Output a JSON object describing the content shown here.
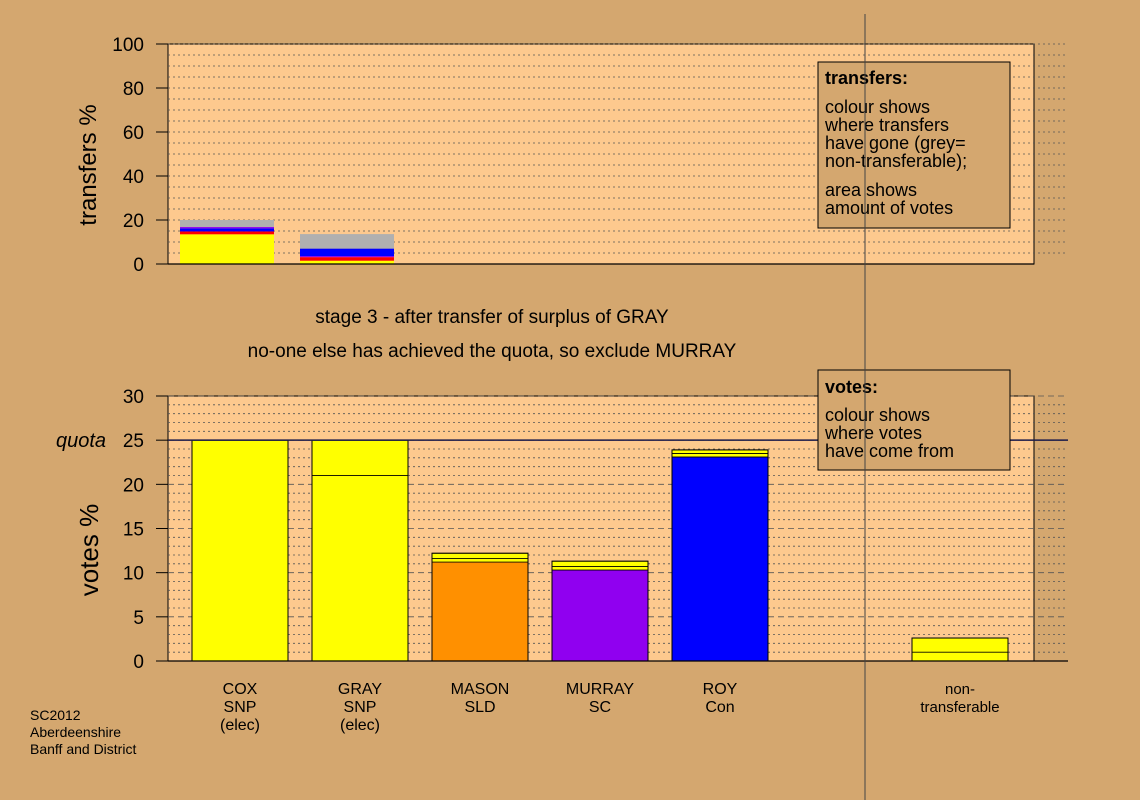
{
  "colors": {
    "background": "#d4a76f",
    "plot_bg": "#fdc98e",
    "snp": "#ffff00",
    "sld": "#ff9000",
    "sc": "#9000f0",
    "con": "#0000ff",
    "red": "#ff0000",
    "nontransferable": "#b0b0b0",
    "box_bg": "#d4a76f",
    "axis": "#000000",
    "quota_line": "#1a1a4a",
    "divider": "#444444"
  },
  "stage_text": {
    "line1": "stage 3 - after transfer of surplus of GRAY",
    "line2": "no-one else has achieved the quota, so exclude MURRAY"
  },
  "transfers_box": {
    "title": "transfers:",
    "lines1": [
      "colour shows",
      "where transfers",
      "have gone (grey=",
      "non-transferable);"
    ],
    "lines2": [
      "area shows",
      "amount of votes"
    ]
  },
  "votes_box": {
    "title": "votes:",
    "lines": [
      "colour shows",
      "where votes",
      "have come from"
    ]
  },
  "footer": [
    "SC2012",
    "Aberdeenshire",
    "Banff and District"
  ],
  "chart_data": [
    {
      "type": "bar",
      "stacked": true,
      "ylabel": "transfers %",
      "ylim": [
        0,
        100
      ],
      "yticks": [
        0,
        20,
        40,
        60,
        80,
        100
      ],
      "grid": true,
      "bars": [
        {
          "slot": 0,
          "segments": [
            {
              "value": 13.5,
              "color": "snp"
            },
            {
              "value": 1.3,
              "color": "red"
            },
            {
              "value": 1.4,
              "color": "con"
            },
            {
              "value": 0.6,
              "color": "sc"
            },
            {
              "value": 3.2,
              "color": "nontransferable"
            }
          ]
        },
        {
          "slot": 1,
          "segments": [
            {
              "value": 1.5,
              "color": "snp"
            },
            {
              "value": 1.6,
              "color": "red"
            },
            {
              "value": 0.5,
              "color": "sc"
            },
            {
              "value": 3.4,
              "color": "con"
            },
            {
              "value": 6.6,
              "color": "nontransferable"
            }
          ]
        }
      ]
    },
    {
      "type": "bar",
      "stacked": true,
      "ylabel": "votes %",
      "ylim": [
        0,
        30
      ],
      "yticks": [
        0,
        5,
        10,
        15,
        20,
        25,
        30
      ],
      "quota": 25,
      "quota_label": "quota",
      "grid": true,
      "bars": [
        {
          "slot": 0,
          "label": [
            "COX",
            "SNP",
            "(elec)"
          ],
          "segments": [
            {
              "value": 25,
              "color": "snp"
            }
          ]
        },
        {
          "slot": 1,
          "label": [
            "GRAY",
            "SNP",
            "(elec)"
          ],
          "segments": [
            {
              "value": 21,
              "color": "snp"
            },
            {
              "value": 4,
              "color": "snp"
            }
          ]
        },
        {
          "slot": 2,
          "label": [
            "MASON",
            "SLD"
          ],
          "segments": [
            {
              "value": 11.2,
              "color": "sld"
            },
            {
              "value": 0.4,
              "color": "snp"
            },
            {
              "value": 0.6,
              "color": "snp"
            }
          ]
        },
        {
          "slot": 3,
          "label": [
            "MURRAY",
            "SC"
          ],
          "segments": [
            {
              "value": 10.3,
              "color": "sc"
            },
            {
              "value": 0.4,
              "color": "snp"
            },
            {
              "value": 0.6,
              "color": "snp"
            }
          ]
        },
        {
          "slot": 4,
          "label": [
            "ROY",
            "Con"
          ],
          "segments": [
            {
              "value": 23.1,
              "color": "con"
            },
            {
              "value": 0.4,
              "color": "snp"
            },
            {
              "value": 0.4,
              "color": "snp"
            }
          ]
        },
        {
          "slot": 6,
          "label": [
            "non-",
            "transferable"
          ],
          "small_label": true,
          "segments": [
            {
              "value": 1.0,
              "color": "snp"
            },
            {
              "value": 1.6,
              "color": "snp"
            }
          ]
        }
      ]
    }
  ]
}
